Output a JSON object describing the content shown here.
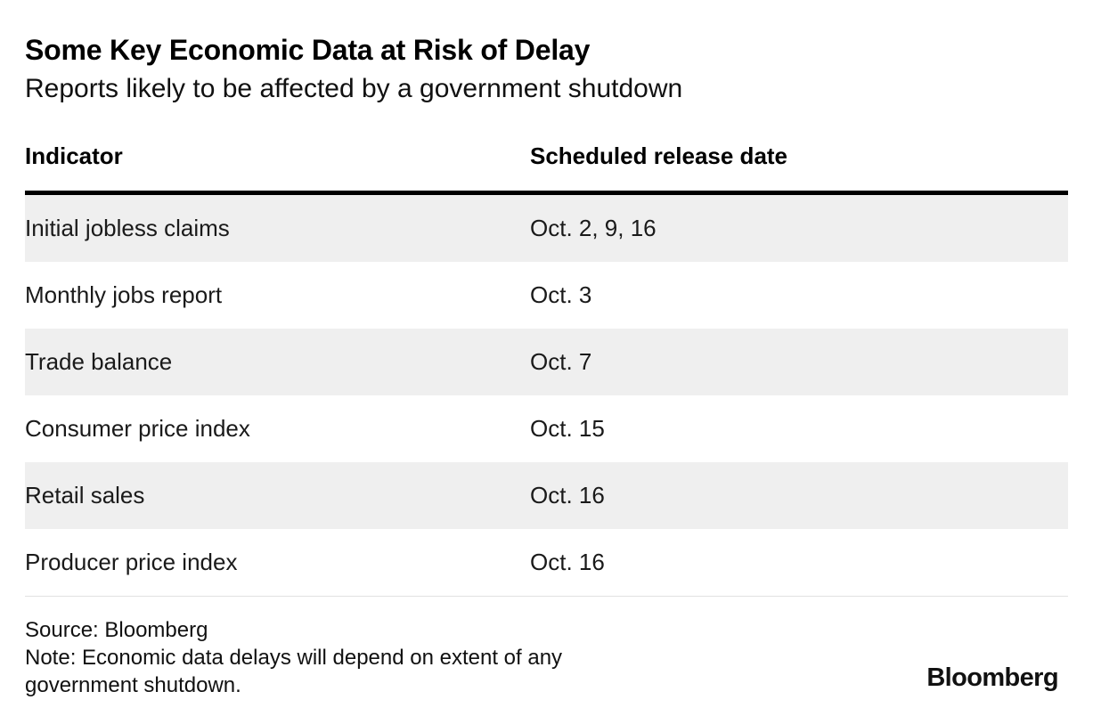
{
  "chart_data": {
    "type": "table",
    "title": "Some Key Economic Data at Risk of Delay",
    "subtitle": "Reports likely to be affected by a government shutdown",
    "columns": [
      "Indicator",
      "Scheduled release date"
    ],
    "rows": [
      [
        "Initial jobless claims",
        "Oct. 2, 9, 16"
      ],
      [
        "Monthly jobs report",
        "Oct. 3"
      ],
      [
        "Trade balance",
        "Oct. 7"
      ],
      [
        "Consumer price index",
        "Oct. 15"
      ],
      [
        "Retail sales",
        "Oct. 16"
      ],
      [
        "Producer price index",
        "Oct. 16"
      ]
    ],
    "source": "Source: Bloomberg",
    "note": "Note: Economic data delays will depend on extent of any government shutdown.",
    "legend_position": "none",
    "grid": "horizontal-stripes"
  },
  "header": {
    "title": "Some Key Economic Data at Risk of Delay",
    "subtitle": "Reports likely to be affected by a government shutdown"
  },
  "table": {
    "col_indicator": "Indicator",
    "col_date": "Scheduled release date",
    "rows": [
      {
        "indicator": "Initial jobless claims",
        "date": "Oct. 2, 9, 16"
      },
      {
        "indicator": "Monthly jobs report",
        "date": "Oct. 3"
      },
      {
        "indicator": "Trade balance",
        "date": "Oct. 7"
      },
      {
        "indicator": "Consumer price index",
        "date": "Oct. 15"
      },
      {
        "indicator": "Retail sales",
        "date": "Oct. 16"
      },
      {
        "indicator": "Producer price index",
        "date": "Oct. 16"
      }
    ]
  },
  "footer": {
    "source": "Source: Bloomberg",
    "note": "Note: Economic data delays will depend on extent of any government shutdown.",
    "logo_text": "Bloomberg"
  },
  "colors": {
    "row_stripe": "#efefef",
    "header_rule": "#000000",
    "bottom_divider": "#e2e2e2",
    "text": "#000000"
  }
}
